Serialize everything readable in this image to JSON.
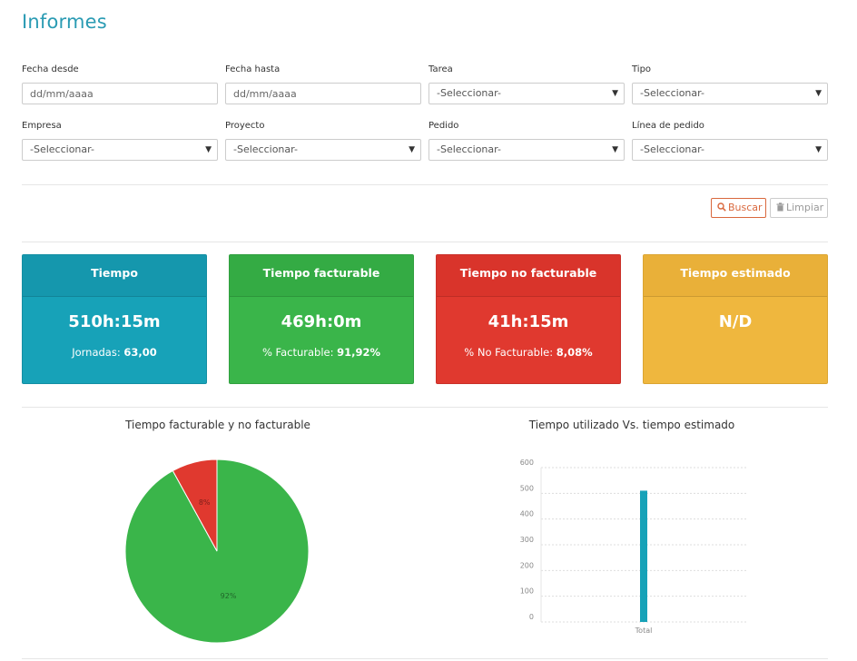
{
  "page": {
    "title": "Informes"
  },
  "filters": {
    "fecha_desde": {
      "label": "Fecha desde",
      "placeholder": "dd/mm/aaaa"
    },
    "fecha_hasta": {
      "label": "Fecha hasta",
      "placeholder": "dd/mm/aaaa"
    },
    "tarea": {
      "label": "Tarea",
      "value": "-Seleccionar-"
    },
    "tipo": {
      "label": "Tipo",
      "value": "-Seleccionar-"
    },
    "empresa": {
      "label": "Empresa",
      "value": "-Seleccionar-"
    },
    "proyecto": {
      "label": "Proyecto",
      "value": "-Seleccionar-"
    },
    "pedido": {
      "label": "Pedido",
      "value": "-Seleccionar-"
    },
    "linea_pedido": {
      "label": "Línea de pedido",
      "value": "-Seleccionar-"
    }
  },
  "actions": {
    "search_label": "Buscar",
    "search_icon": "search-icon",
    "clear_label": "Limpiar",
    "clear_icon": "trash-icon"
  },
  "cards": {
    "tiempo": {
      "title": "Tiempo",
      "value": "510h:15m",
      "sub_label": "Jornadas:",
      "sub_value": "63,00",
      "color": "#17a2b8"
    },
    "facturable": {
      "title": "Tiempo facturable",
      "value": "469h:0m",
      "sub_label": "% Facturable:",
      "sub_value": "91,92%",
      "color": "#3ab54a"
    },
    "no_facturable": {
      "title": "Tiempo no facturable",
      "value": "41h:15m",
      "sub_label": "% No Facturable:",
      "sub_value": "8,08%",
      "color": "#e0392f"
    },
    "estimado": {
      "title": "Tiempo estimado",
      "value": "N/D",
      "color": "#efb73e"
    }
  },
  "chart_data": [
    {
      "type": "pie",
      "title": "Tiempo facturable y no facturable",
      "slices": [
        {
          "label": "92%",
          "value": 92,
          "color": "#3ab54a"
        },
        {
          "label": "8%",
          "value": 8,
          "color": "#e0392f"
        }
      ]
    },
    {
      "type": "bar",
      "title": "Tiempo utilizado Vs. tiempo estimado",
      "categories": [
        "Total"
      ],
      "values": [
        510.25
      ],
      "ylim": [
        0,
        600
      ],
      "yticks": [
        0,
        100,
        200,
        300,
        400,
        500,
        600
      ],
      "grid": true,
      "color": "#17a2b8"
    }
  ]
}
